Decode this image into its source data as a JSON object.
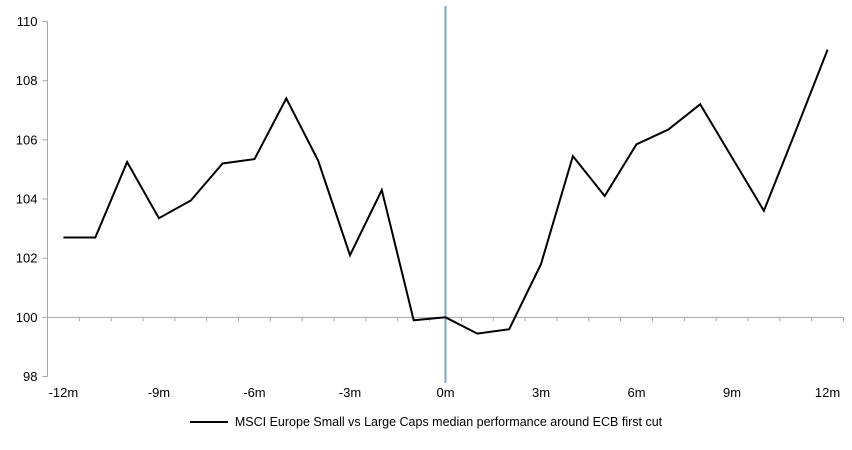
{
  "chart_data": {
    "type": "line",
    "title": "",
    "categories": [
      "-12m",
      "-11m",
      "-10m",
      "-9m",
      "-8m",
      "-7m",
      "-6m",
      "-5m",
      "-4m",
      "-3m",
      "-2m",
      "-1m",
      "0m",
      "1m",
      "2m",
      "3m",
      "4m",
      "5m",
      "6m",
      "7m",
      "8m",
      "9m",
      "10m",
      "11m",
      "12m"
    ],
    "x_tick_labels": [
      "-12m",
      "-9m",
      "-6m",
      "-3m",
      "0m",
      "3m",
      "6m",
      "9m",
      "12m"
    ],
    "series": [
      {
        "name": "MSCI Europe Small vs Large Caps median performance around ECB first cut",
        "color": "#000000",
        "values": [
          102.7,
          102.7,
          105.25,
          103.35,
          103.95,
          105.2,
          105.35,
          107.4,
          105.3,
          102.1,
          104.3,
          99.9,
          100.0,
          99.45,
          99.6,
          101.8,
          105.45,
          104.1,
          105.85,
          106.35,
          107.2,
          105.4,
          103.6,
          106.3,
          109.05
        ]
      }
    ],
    "ylim": [
      98,
      110
    ],
    "y_ticks": [
      98,
      100,
      102,
      104,
      106,
      108,
      110
    ],
    "baseline": 100,
    "event_line": {
      "x_category": "0m",
      "color": "#7CA5CC"
    },
    "grid": "horizontal line at 100 only",
    "legend_position": "bottom-center",
    "axis_color": "#a6a6a6"
  },
  "legend": {
    "label": "MSCI Europe Small vs Large Caps median performance around ECB first cut"
  }
}
